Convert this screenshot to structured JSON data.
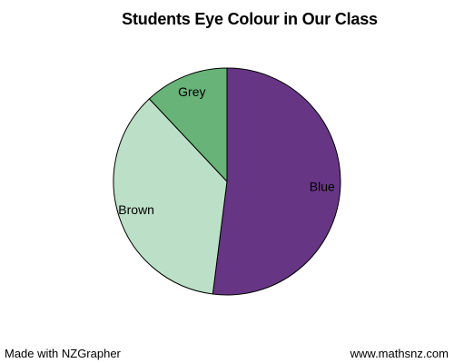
{
  "chart_data": {
    "type": "pie",
    "title": "Students Eye Colour in Our Class",
    "categories": [
      "Blue",
      "Brown",
      "Grey"
    ],
    "values": [
      52,
      36,
      12
    ],
    "colors": [
      "#663685",
      "#bce0c7",
      "#67b378"
    ],
    "start": "top (12 o'clock)",
    "direction": "clockwise",
    "legend": "none (labels on slices)"
  },
  "footer": {
    "left": "Made with NZGrapher",
    "right": "www.mathsnz.com"
  }
}
